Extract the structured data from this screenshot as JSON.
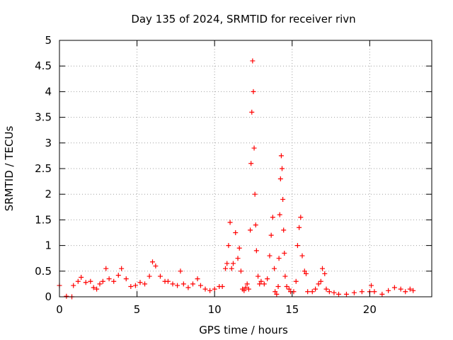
{
  "chart_data": {
    "type": "scatter",
    "title": "Day 135 of 2024, SRMTID for receiver rivn",
    "xlabel": "GPS time / hours",
    "ylabel": "SRMTID / TECUs",
    "xlim": [
      0,
      24
    ],
    "ylim": [
      0,
      5
    ],
    "xticks": [
      0,
      5,
      10,
      15,
      20
    ],
    "yticks": [
      0,
      0.5,
      1,
      1.5,
      2,
      2.5,
      3,
      3.5,
      4,
      4.5,
      5
    ],
    "grid": true,
    "marker": "+",
    "marker_color": "#ff0000",
    "series": [
      {
        "name": "SRMTID",
        "points": [
          [
            0.0,
            0.22
          ],
          [
            0.45,
            0.01
          ],
          [
            0.8,
            0.0
          ],
          [
            0.9,
            0.22
          ],
          [
            1.2,
            0.3
          ],
          [
            1.4,
            0.38
          ],
          [
            1.7,
            0.28
          ],
          [
            2.0,
            0.3
          ],
          [
            2.2,
            0.18
          ],
          [
            2.4,
            0.15
          ],
          [
            2.6,
            0.25
          ],
          [
            2.8,
            0.3
          ],
          [
            3.0,
            0.55
          ],
          [
            3.2,
            0.35
          ],
          [
            3.5,
            0.3
          ],
          [
            3.8,
            0.42
          ],
          [
            4.0,
            0.55
          ],
          [
            4.3,
            0.35
          ],
          [
            4.6,
            0.2
          ],
          [
            4.9,
            0.22
          ],
          [
            5.2,
            0.28
          ],
          [
            5.5,
            0.25
          ],
          [
            5.8,
            0.4
          ],
          [
            6.0,
            0.68
          ],
          [
            6.2,
            0.6
          ],
          [
            6.5,
            0.4
          ],
          [
            6.8,
            0.3
          ],
          [
            7.0,
            0.3
          ],
          [
            7.3,
            0.25
          ],
          [
            7.6,
            0.22
          ],
          [
            7.8,
            0.5
          ],
          [
            8.0,
            0.25
          ],
          [
            8.3,
            0.18
          ],
          [
            8.6,
            0.25
          ],
          [
            8.9,
            0.35
          ],
          [
            9.1,
            0.22
          ],
          [
            9.4,
            0.15
          ],
          [
            9.7,
            0.12
          ],
          [
            10.0,
            0.15
          ],
          [
            10.3,
            0.2
          ],
          [
            10.5,
            0.2
          ],
          [
            10.7,
            0.55
          ],
          [
            10.8,
            0.65
          ],
          [
            10.9,
            1.0
          ],
          [
            11.0,
            1.45
          ],
          [
            11.1,
            0.55
          ],
          [
            11.2,
            0.65
          ],
          [
            11.35,
            1.25
          ],
          [
            11.5,
            0.75
          ],
          [
            11.6,
            0.95
          ],
          [
            11.7,
            0.5
          ],
          [
            11.8,
            0.15
          ],
          [
            11.9,
            0.12
          ],
          [
            12.0,
            0.18
          ],
          [
            12.1,
            0.25
          ],
          [
            12.2,
            0.15
          ],
          [
            12.3,
            1.3
          ],
          [
            12.35,
            2.6
          ],
          [
            12.4,
            3.6
          ],
          [
            12.45,
            4.6
          ],
          [
            12.5,
            4.0
          ],
          [
            12.55,
            2.9
          ],
          [
            12.6,
            2.0
          ],
          [
            12.65,
            1.4
          ],
          [
            12.7,
            0.9
          ],
          [
            12.8,
            0.4
          ],
          [
            12.9,
            0.25
          ],
          [
            13.0,
            0.3
          ],
          [
            13.2,
            0.25
          ],
          [
            13.4,
            0.35
          ],
          [
            13.55,
            0.8
          ],
          [
            13.65,
            1.2
          ],
          [
            13.75,
            1.55
          ],
          [
            13.85,
            0.55
          ],
          [
            13.9,
            0.1
          ],
          [
            14.0,
            0.05
          ],
          [
            14.1,
            0.2
          ],
          [
            14.15,
            0.75
          ],
          [
            14.2,
            1.6
          ],
          [
            14.25,
            2.3
          ],
          [
            14.3,
            2.75
          ],
          [
            14.35,
            2.5
          ],
          [
            14.4,
            1.9
          ],
          [
            14.45,
            1.3
          ],
          [
            14.5,
            0.85
          ],
          [
            14.55,
            0.4
          ],
          [
            14.65,
            0.2
          ],
          [
            14.8,
            0.15
          ],
          [
            14.9,
            0.1
          ],
          [
            15.1,
            0.1
          ],
          [
            15.25,
            0.3
          ],
          [
            15.35,
            1.0
          ],
          [
            15.45,
            1.35
          ],
          [
            15.55,
            1.55
          ],
          [
            15.65,
            0.8
          ],
          [
            15.8,
            0.5
          ],
          [
            15.9,
            0.45
          ],
          [
            16.0,
            0.1
          ],
          [
            16.3,
            0.1
          ],
          [
            16.5,
            0.15
          ],
          [
            16.7,
            0.25
          ],
          [
            16.85,
            0.3
          ],
          [
            16.95,
            0.55
          ],
          [
            17.1,
            0.45
          ],
          [
            17.2,
            0.15
          ],
          [
            17.4,
            0.1
          ],
          [
            17.7,
            0.08
          ],
          [
            18.0,
            0.05
          ],
          [
            18.5,
            0.05
          ],
          [
            19.0,
            0.08
          ],
          [
            19.5,
            0.1
          ],
          [
            20.0,
            0.1
          ],
          [
            20.1,
            0.22
          ],
          [
            20.3,
            0.1
          ],
          [
            20.8,
            0.05
          ],
          [
            21.2,
            0.12
          ],
          [
            21.6,
            0.18
          ],
          [
            22.0,
            0.15
          ],
          [
            22.3,
            0.1
          ],
          [
            22.6,
            0.15
          ],
          [
            22.8,
            0.12
          ]
        ]
      }
    ]
  }
}
